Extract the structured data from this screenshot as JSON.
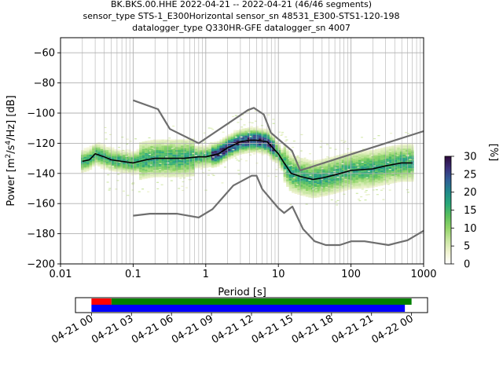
{
  "figure": {
    "title_lines": [
      "BK.BKS.00.HHE   2022-04-21 -- 2022-04-21  (46/46 segments)",
      "sensor_type STS-1_E300Horizontal sensor_sn 48531_E300-STS1-120-198",
      "datalogger_type Q330HR-GFE datalogger_sn 4007"
    ]
  },
  "chart_data": [
    {
      "type": "heatmap",
      "xlabel": "Period [s]",
      "ylabel": "Power [m$^2$/s$^4$/Hz] [dB]",
      "ylabel_parts": {
        "base": "Power [m",
        "sup1": "2",
        "mid": "/s",
        "sup2": "4",
        "end": "/Hz] [dB]"
      },
      "x_scale": "log",
      "xlim": [
        0.01,
        1000
      ],
      "ylim": [
        -200,
        -50
      ],
      "x_ticks": [
        0.01,
        0.1,
        1,
        10,
        100,
        1000
      ],
      "x_tick_labels": [
        "0.01",
        "0.1",
        "1",
        "10",
        "100",
        "1000"
      ],
      "y_ticks": [
        -200,
        -180,
        -160,
        -140,
        -120,
        -100,
        -80,
        -60
      ],
      "y_tick_labels": [
        "−200",
        "−180",
        "−160",
        "−140",
        "−120",
        "−100",
        "−80",
        "−60"
      ],
      "grid": true,
      "colorbar": {
        "label": "[%]",
        "range": [
          0,
          30
        ],
        "ticks": [
          0,
          5,
          10,
          15,
          20,
          25,
          30
        ],
        "tick_labels": [
          "0",
          "5",
          "10",
          "15",
          "20",
          "25",
          "30"
        ],
        "colormap_stops": [
          "#ffffff",
          "#f0f3d0",
          "#c8e6a0",
          "#92d468",
          "#5cc05c",
          "#28a878",
          "#1f8a8a",
          "#2f5f96",
          "#3a2f7a",
          "#2d0a3a"
        ]
      },
      "series": [
        {
          "name": "",
          "color": "#000000",
          "points": [
            [
              0.02,
              -132
            ],
            [
              0.025,
              -131
            ],
            [
              0.03,
              -127
            ],
            [
              0.04,
              -129
            ],
            [
              0.05,
              -131
            ],
            [
              0.07,
              -132
            ],
            [
              0.1,
              -133
            ],
            [
              0.15,
              -131
            ],
            [
              0.2,
              -130
            ],
            [
              0.3,
              -130
            ],
            [
              0.5,
              -130
            ],
            [
              0.8,
              -129
            ],
            [
              1,
              -129
            ],
            [
              1.5,
              -127
            ],
            [
              2,
              -123
            ],
            [
              3,
              -119
            ],
            [
              4,
              -118
            ],
            [
              5,
              -118
            ],
            [
              7,
              -119
            ],
            [
              10,
              -127
            ],
            [
              12,
              -133
            ],
            [
              15,
              -140
            ],
            [
              20,
              -142
            ],
            [
              30,
              -144
            ],
            [
              40,
              -143
            ],
            [
              60,
              -141
            ],
            [
              100,
              -138
            ],
            [
              200,
              -137
            ],
            [
              300,
              -135
            ],
            [
              500,
              -133
            ],
            [
              700,
              -133
            ]
          ]
        },
        {
          "name": "",
          "color": "#6e6e6e",
          "points": [
            [
              0.1,
              -91.5
            ],
            [
              0.22,
              -97.4
            ],
            [
              0.32,
              -110.5
            ],
            [
              0.8,
              -120.0
            ],
            [
              3.8,
              -98.0
            ],
            [
              4.6,
              -96.5
            ],
            [
              6.3,
              -101.0
            ],
            [
              7.9,
              -113.0
            ],
            [
              15.4,
              -125.0
            ],
            [
              20.0,
              -138.0
            ],
            [
              1000,
              -112.0
            ]
          ]
        },
        {
          "name": "",
          "color": "#6e6e6e",
          "points": [
            [
              0.1,
              -168.0
            ],
            [
              0.17,
              -166.7
            ],
            [
              0.4,
              -166.7
            ],
            [
              0.8,
              -169.2
            ],
            [
              1.24,
              -163.7
            ],
            [
              2.4,
              -148.0
            ],
            [
              4.3,
              -141.5
            ],
            [
              5.0,
              -141.5
            ],
            [
              6.0,
              -150.4
            ],
            [
              10.0,
              -163.0
            ],
            [
              12.0,
              -166.2
            ],
            [
              15.6,
              -162.0
            ],
            [
              21.9,
              -177.0
            ],
            [
              31.6,
              -185.0
            ],
            [
              45.0,
              -187.5
            ],
            [
              70.0,
              -187.5
            ],
            [
              101,
              -185.0
            ],
            [
              154,
              -185.0
            ],
            [
              328,
              -187.5
            ],
            [
              600,
              -184.3
            ],
            [
              1000,
              -178.0
            ]
          ]
        }
      ]
    },
    {
      "type": "bar",
      "x_tick_labels": [
        "04-21 00",
        "04-21 03",
        "04-21 06",
        "04-21 09",
        "04-21 12",
        "04-21 15",
        "04-21 18",
        "04-21 21",
        "04-22 00"
      ],
      "x_ticks_hours": [
        0,
        3,
        6,
        9,
        12,
        15,
        18,
        21,
        24
      ],
      "xlim_hours": [
        -1.2,
        25.2
      ],
      "series": [
        {
          "name": "",
          "color": "#ff0000",
          "start_hours": 0.0,
          "end_hours": 1.5
        },
        {
          "name": "",
          "color": "#008000",
          "start_hours": 1.5,
          "end_hours": 24.0
        },
        {
          "name": "",
          "color": "#0000ff",
          "start_hours": 0.0,
          "end_hours": 23.5
        }
      ]
    }
  ]
}
